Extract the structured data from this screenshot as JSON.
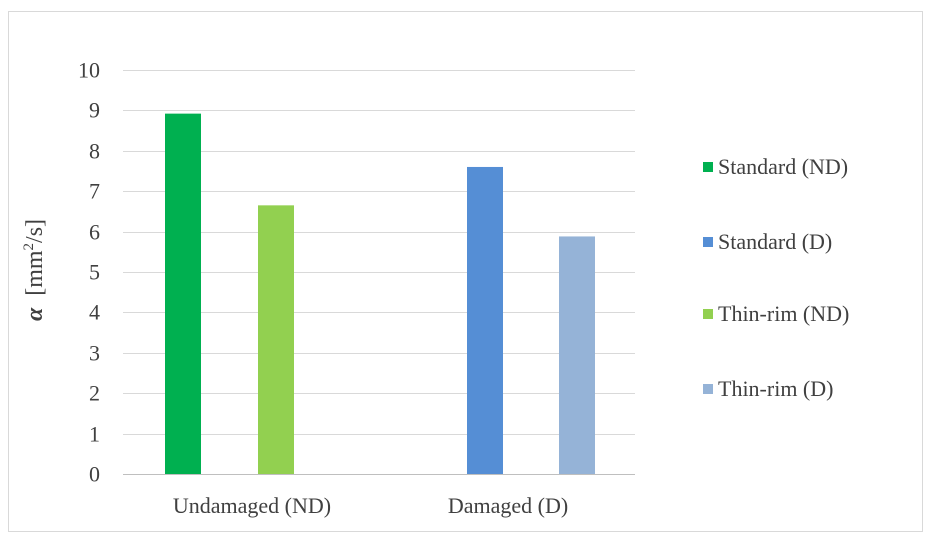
{
  "chart_data": {
    "type": "bar",
    "title": "",
    "xlabel": "",
    "ylabel": {
      "symbol": "α",
      "unit_open": "[mm",
      "unit_sup": "2",
      "unit_close": "/s]"
    },
    "ylim": [
      0,
      10
    ],
    "yticks": [
      "0",
      "1",
      "2",
      "3",
      "4",
      "5",
      "6",
      "7",
      "8",
      "9",
      "10"
    ],
    "grid": true,
    "legend_position": "right",
    "categories": [
      "Undamaged (ND)",
      "Damaged (D)"
    ],
    "series": [
      {
        "name": "Standard (ND)",
        "color": "#00b050",
        "values": [
          8.92,
          null
        ]
      },
      {
        "name": "Thin-rim (ND)",
        "color": "#92d050",
        "values": [
          6.65,
          null
        ]
      },
      {
        "name": "Standard (D)",
        "color": "#558ed5",
        "values": [
          null,
          7.6
        ]
      },
      {
        "name": "Thin-rim (D)",
        "color": "#95b3d7",
        "values": [
          null,
          5.88
        ]
      }
    ],
    "legend_order": [
      "Standard (ND)",
      "Standard (D)",
      "Thin-rim (ND)",
      "Thin-rim (D)"
    ]
  }
}
